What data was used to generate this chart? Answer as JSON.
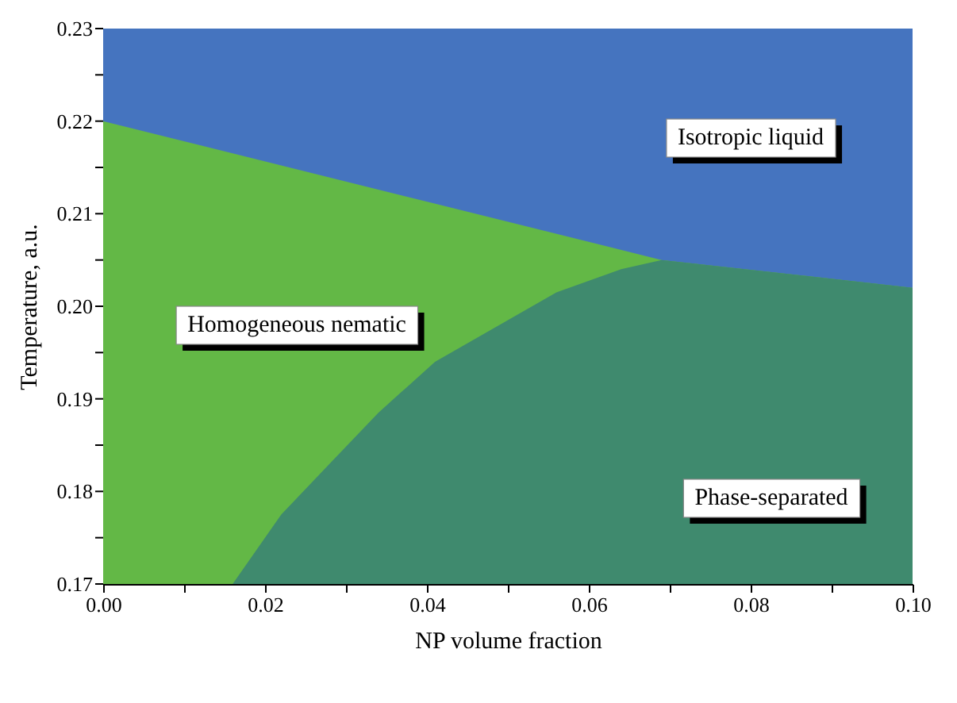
{
  "chart_data": {
    "type": "area",
    "xlabel": "NP volume fraction",
    "ylabel": "Temperature, a.u.",
    "xlim": [
      0,
      0.1
    ],
    "ylim": [
      0.17,
      0.23
    ],
    "xticks": [
      {
        "value": 0,
        "label": "0.00"
      },
      {
        "value": 0.01,
        "label": null
      },
      {
        "value": 0.02,
        "label": "0.02"
      },
      {
        "value": 0.03,
        "label": null
      },
      {
        "value": 0.04,
        "label": "0.04"
      },
      {
        "value": 0.05,
        "label": null
      },
      {
        "value": 0.06,
        "label": "0.06"
      },
      {
        "value": 0.07,
        "label": null
      },
      {
        "value": 0.08,
        "label": "0.08"
      },
      {
        "value": 0.09,
        "label": null
      },
      {
        "value": 0.1,
        "label": "0.10"
      }
    ],
    "yticks": [
      {
        "value": 0.17,
        "label": "0.17"
      },
      {
        "value": 0.175,
        "label": null
      },
      {
        "value": 0.18,
        "label": "0.18"
      },
      {
        "value": 0.185,
        "label": null
      },
      {
        "value": 0.19,
        "label": "0.19"
      },
      {
        "value": 0.195,
        "label": null
      },
      {
        "value": 0.2,
        "label": "0.20"
      },
      {
        "value": 0.205,
        "label": null
      },
      {
        "value": 0.21,
        "label": "0.21"
      },
      {
        "value": 0.215,
        "label": null
      },
      {
        "value": 0.22,
        "label": "0.22"
      },
      {
        "value": 0.225,
        "label": null
      },
      {
        "value": 0.23,
        "label": "0.23"
      }
    ],
    "series": [
      {
        "color": "#4574bf",
        "x": [
          0,
          0.1
        ],
        "values": [
          0.23,
          0.23
        ]
      },
      {
        "color": "#63b846",
        "x": [
          0,
          0.069,
          0.1
        ],
        "values": [
          0.22,
          0.205,
          0.202
        ]
      },
      {
        "color": "#3f8a6e",
        "x": [
          0.016,
          0.022,
          0.028,
          0.034,
          0.041,
          0.05,
          0.056,
          0.064,
          0.069,
          0.1
        ],
        "values": [
          0.17,
          0.1775,
          0.183,
          0.1885,
          0.194,
          0.1985,
          0.2015,
          0.204,
          0.205,
          0.202
        ]
      }
    ],
    "annotations": [
      "Isotropic liquid",
      "Homogeneous nematic",
      "Phase-separated"
    ]
  }
}
